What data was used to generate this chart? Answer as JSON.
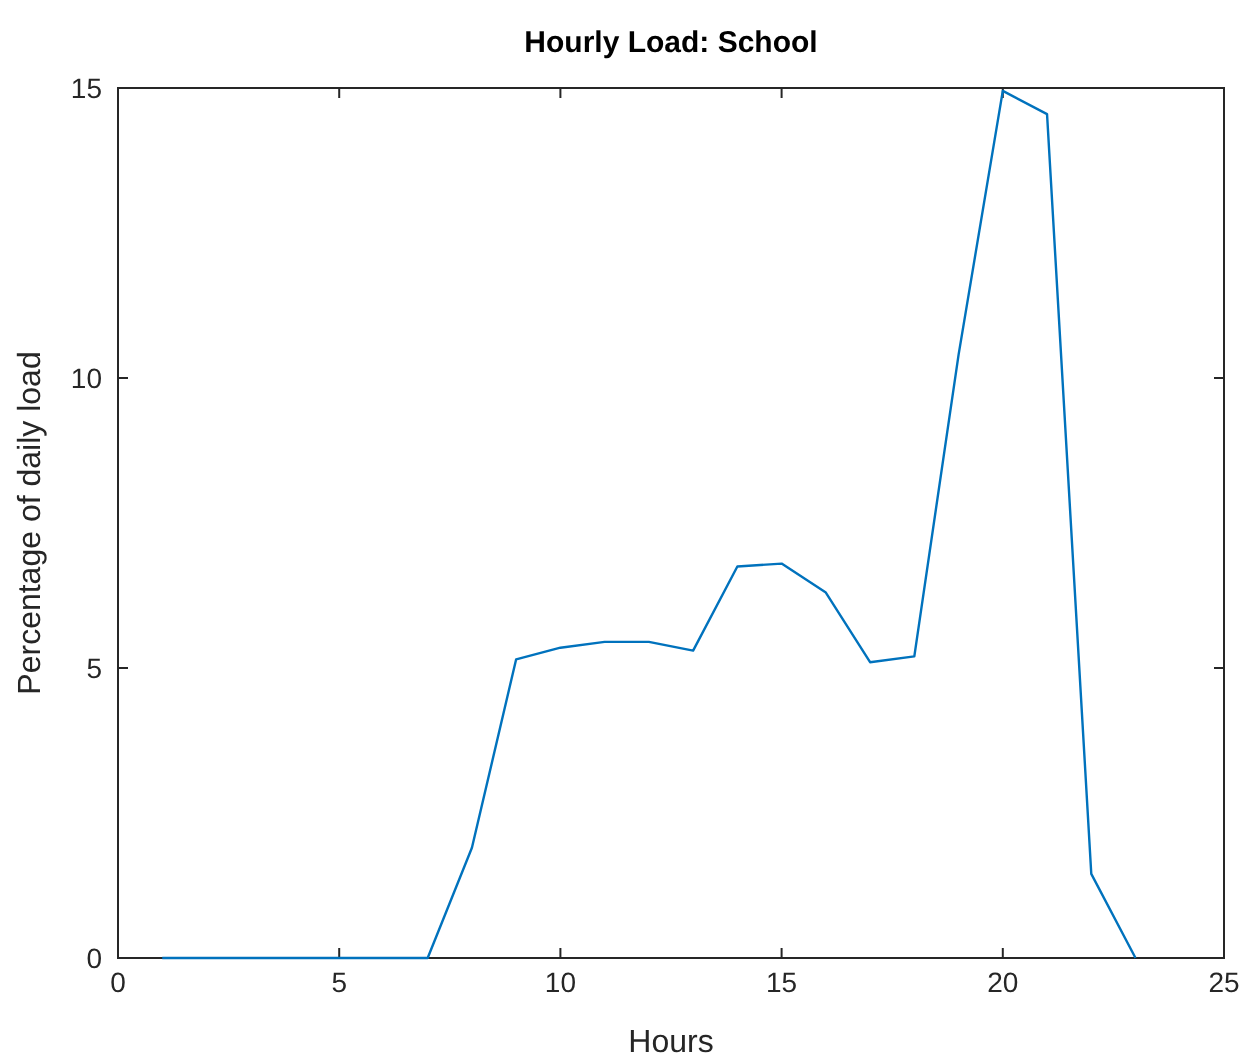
{
  "chart_data": {
    "type": "line",
    "title": "Hourly Load: School",
    "xlabel": "Hours",
    "ylabel": "Percentage of daily load",
    "x": [
      1,
      2,
      3,
      4,
      5,
      6,
      7,
      8,
      9,
      10,
      11,
      12,
      13,
      14,
      15,
      16,
      17,
      18,
      19,
      20,
      21,
      22,
      23
    ],
    "series": [
      {
        "color": "#0072bd",
        "values": [
          0,
          0,
          0,
          0,
          0,
          0,
          0,
          1.9,
          5.15,
          5.35,
          5.45,
          5.45,
          5.3,
          6.75,
          6.8,
          6.3,
          5.1,
          5.2,
          10.4,
          14.95,
          14.55,
          1.45,
          0
        ]
      }
    ],
    "xlim": [
      0,
      25
    ],
    "xticks": [
      0,
      5,
      10,
      15,
      20,
      25
    ],
    "ylim": [
      0,
      15
    ],
    "yticks": [
      0,
      5,
      10,
      15
    ],
    "grid": false,
    "marker": "none",
    "line_style": "solid"
  }
}
